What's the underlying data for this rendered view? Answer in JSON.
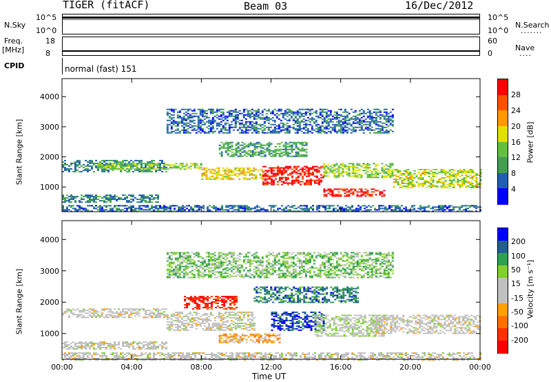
{
  "header": {
    "radar": "TIGER (fitACF)",
    "beam": "Beam 03",
    "date": "16/Dec/2012"
  },
  "params": {
    "nsky_label": "N.Sky",
    "nsearch_label": "N.Search",
    "nsky_ticks": [
      "10^5",
      "10^0"
    ],
    "nsearch_ticks": [
      "10^5",
      "10^0"
    ],
    "freq_label": "Freq.",
    "freq_unit": "[MHz]",
    "freq_ticks": [
      "18",
      "8"
    ],
    "nave_label": "Nave",
    "nave_ticks": [
      "60",
      "0"
    ],
    "cpid_label": "CPID",
    "cpid_value": "normal (fast) 151"
  },
  "colors": {
    "power_scale": [
      "#0000ff",
      "#2060b0",
      "#40a050",
      "#60c040",
      "#e0e000",
      "#ff9900",
      "#ff5000",
      "#ff0000"
    ],
    "velocity_scale": [
      "#0000ff",
      "#206090",
      "#30a050",
      "#80d030",
      "#c0c0c0",
      "#c0c0c0",
      "#ffa000",
      "#ff7000",
      "#ff3000",
      "#ff0000"
    ]
  },
  "chart_data": [
    {
      "type": "heatmap",
      "name": "power",
      "ylabel": "Slant Range [km]",
      "ylim": [
        180,
        4600
      ],
      "y_ticks": [
        1000,
        2000,
        3000,
        4000
      ],
      "x_ticks": [
        "00:00",
        "04:00",
        "08:00",
        "12:00",
        "16:00",
        "20:00",
        "00:00"
      ],
      "colorbar": {
        "label": "Power [dB]",
        "ticks": [
          "28",
          "24",
          "20",
          "16",
          "12",
          "8",
          "4"
        ],
        "range": [
          0,
          30
        ]
      },
      "bands": [
        {
          "start_h": 0.0,
          "end_h": 5.5,
          "y_lo": 500,
          "y_hi": 750,
          "value": 8
        },
        {
          "start_h": 0.0,
          "end_h": 6.0,
          "y_lo": 1500,
          "y_hi": 1900,
          "value": 8
        },
        {
          "start_h": 2.0,
          "end_h": 8.0,
          "y_lo": 1600,
          "y_hi": 1800,
          "value": 14
        },
        {
          "start_h": 8.0,
          "end_h": 11.5,
          "y_lo": 1250,
          "y_hi": 1650,
          "value": 18
        },
        {
          "start_h": 11.5,
          "end_h": 15.0,
          "y_lo": 1100,
          "y_hi": 1700,
          "value": 28
        },
        {
          "start_h": 15.0,
          "end_h": 18.5,
          "y_lo": 700,
          "y_hi": 950,
          "value": 28
        },
        {
          "start_h": 15.0,
          "end_h": 19.0,
          "y_lo": 1300,
          "y_hi": 1800,
          "value": 14
        },
        {
          "start_h": 19.0,
          "end_h": 24.0,
          "y_lo": 1000,
          "y_hi": 1600,
          "value": 16
        },
        {
          "start_h": 9.0,
          "end_h": 14.0,
          "y_lo": 2000,
          "y_hi": 2500,
          "value": 10
        },
        {
          "start_h": 6.0,
          "end_h": 19.0,
          "y_lo": 2800,
          "y_hi": 3600,
          "value": 6
        },
        {
          "start_h": 0.0,
          "end_h": 24.0,
          "y_lo": 180,
          "y_hi": 400,
          "value": 6
        }
      ]
    },
    {
      "type": "heatmap",
      "name": "velocity",
      "ylabel": "Slant Range [km]",
      "xlabel": "Time UT",
      "ylim": [
        180,
        4600
      ],
      "y_ticks": [
        1000,
        2000,
        3000,
        4000
      ],
      "x_ticks": [
        "00:00",
        "04:00",
        "08:00",
        "12:00",
        "16:00",
        "20:00",
        "00:00"
      ],
      "colorbar": {
        "label": "Velocity [m s⁻¹]",
        "ticks": [
          "200",
          "100",
          "50",
          "15",
          "-15",
          "-50",
          "-100",
          "-200"
        ],
        "range": [
          -250,
          250
        ]
      },
      "bands": [
        {
          "start_h": 0.0,
          "end_h": 6.0,
          "y_lo": 500,
          "y_hi": 750,
          "value": 0
        },
        {
          "start_h": 0.0,
          "end_h": 6.0,
          "y_lo": 1500,
          "y_hi": 1800,
          "value": 0
        },
        {
          "start_h": 6.0,
          "end_h": 11.0,
          "y_lo": 1100,
          "y_hi": 1700,
          "value": 0
        },
        {
          "start_h": 7.0,
          "end_h": 10.0,
          "y_lo": 1800,
          "y_hi": 2200,
          "value": -200
        },
        {
          "start_h": 9.0,
          "end_h": 12.5,
          "y_lo": 700,
          "y_hi": 1000,
          "value": -80
        },
        {
          "start_h": 12.0,
          "end_h": 15.0,
          "y_lo": 1100,
          "y_hi": 1700,
          "value": 200
        },
        {
          "start_h": 14.5,
          "end_h": 18.5,
          "y_lo": 900,
          "y_hi": 1600,
          "value": 30
        },
        {
          "start_h": 18.0,
          "end_h": 24.0,
          "y_lo": 1000,
          "y_hi": 1600,
          "value": 0
        },
        {
          "start_h": 11.0,
          "end_h": 17.0,
          "y_lo": 2000,
          "y_hi": 2500,
          "value": 150
        },
        {
          "start_h": 6.0,
          "end_h": 19.0,
          "y_lo": 2800,
          "y_hi": 3600,
          "value": 80
        },
        {
          "start_h": 0.0,
          "end_h": 24.0,
          "y_lo": 180,
          "y_hi": 400,
          "value": 0
        }
      ]
    }
  ]
}
